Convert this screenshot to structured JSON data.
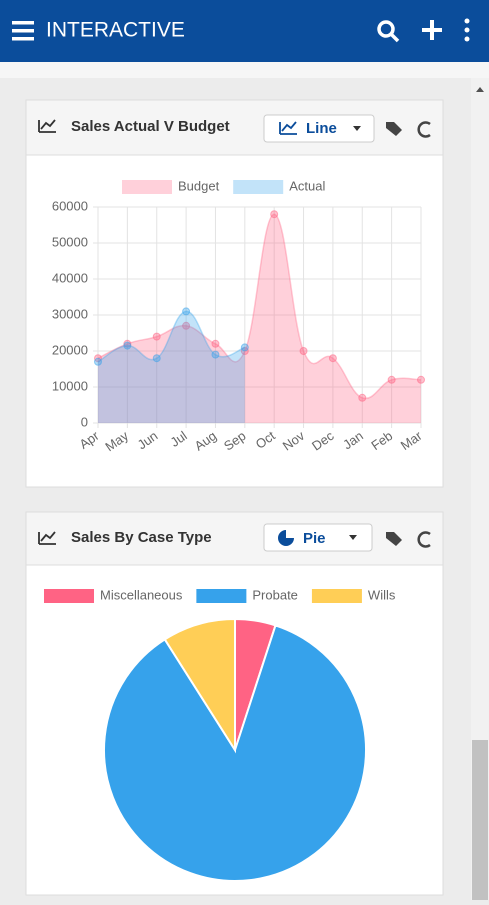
{
  "header": {
    "title": "INTERACTIVE"
  },
  "chart_data": [
    {
      "type": "line",
      "title": "Sales Actual V Budget",
      "view": "Line",
      "categories": [
        "Apr",
        "May",
        "Jun",
        "Jul",
        "Aug",
        "Sep",
        "Oct",
        "Nov",
        "Dec",
        "Jan",
        "Feb",
        "Mar"
      ],
      "series": [
        {
          "name": "Budget",
          "color": "#ff6384",
          "values": [
            18000,
            22000,
            24000,
            27000,
            22000,
            20000,
            58000,
            20000,
            18000,
            7000,
            12000,
            12000
          ]
        },
        {
          "name": "Actual",
          "color": "#36a2eb",
          "values": [
            17000,
            21500,
            18000,
            31000,
            19000,
            21000,
            null,
            null,
            null,
            null,
            null,
            null
          ]
        }
      ],
      "ylim": [
        0,
        60000
      ],
      "yticks": [
        0,
        10000,
        20000,
        30000,
        40000,
        50000,
        60000
      ],
      "grid": true
    },
    {
      "type": "pie",
      "title": "Sales By Case Type",
      "view": "Pie",
      "categories": [
        "Miscellaneous",
        "Probate",
        "Wills"
      ],
      "values": [
        5,
        86,
        9
      ],
      "colors": [
        "#ff6384",
        "#36a2eb",
        "#ffce56"
      ]
    }
  ]
}
